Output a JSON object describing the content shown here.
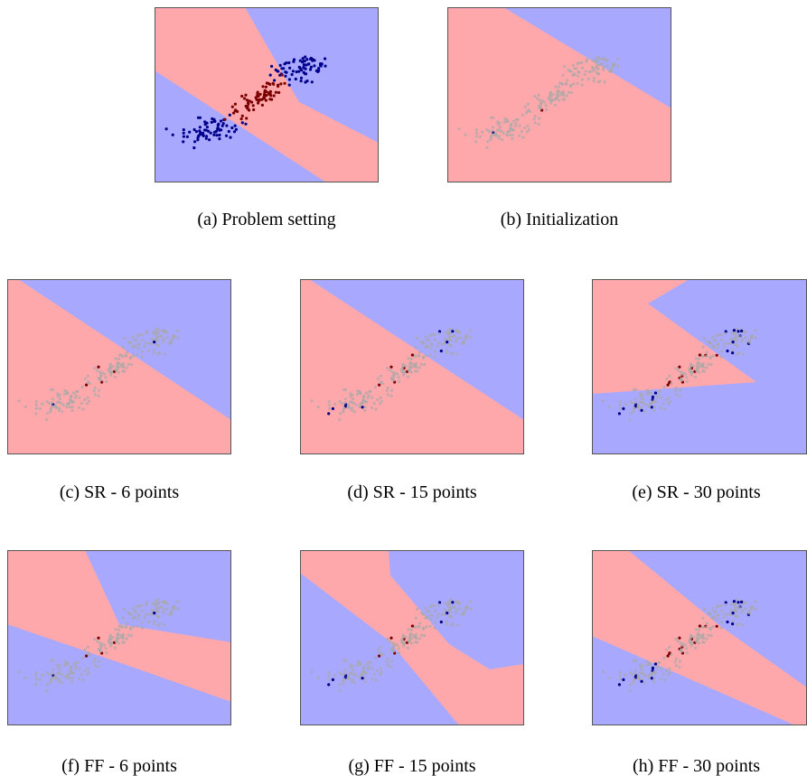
{
  "colors": {
    "region_a": "#a8a8ff",
    "region_b": "#ffa8ac",
    "class_a": "#00008b",
    "class_b": "#7a0000",
    "faded_point": "#a8a8a8",
    "frame": "#555555"
  },
  "captions": {
    "a": "(a)  Problem setting",
    "b": "(b)  Initialization",
    "c": "(c)  SR - 6 points",
    "d": "(d)  SR - 15 points",
    "e": "(e)  SR - 30 points",
    "f": "(f)  FF - 6 points",
    "g": "(g)  FF - 15 points",
    "h": "(h)  FF - 30 points"
  }
}
